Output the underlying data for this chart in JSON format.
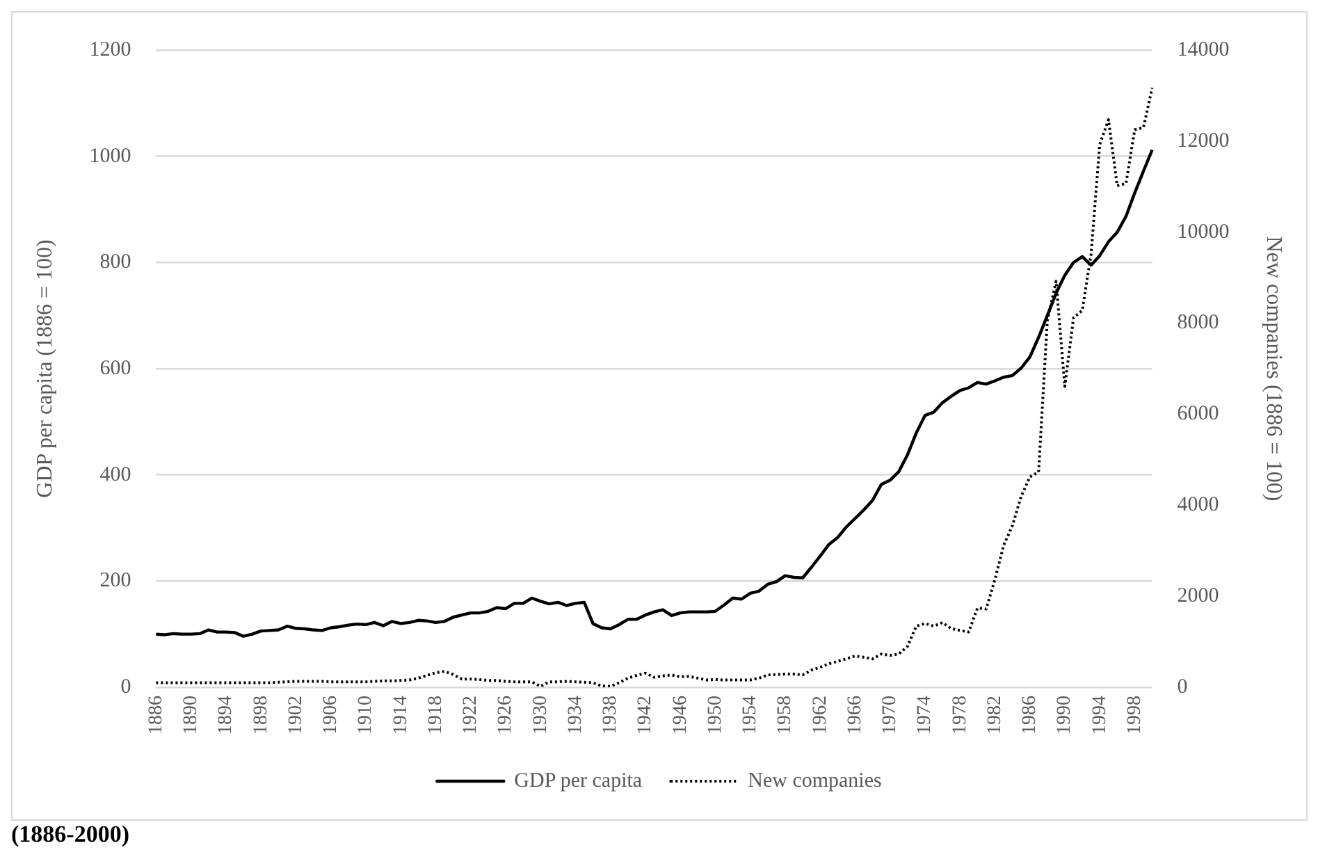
{
  "chart_data": {
    "type": "line",
    "categories": [
      "1886",
      null,
      null,
      null,
      "1890",
      null,
      null,
      null,
      "1894",
      null,
      null,
      null,
      "1898",
      null,
      null,
      null,
      "1902",
      null,
      null,
      null,
      "1906",
      null,
      null,
      null,
      "1910",
      null,
      null,
      null,
      "1914",
      null,
      null,
      null,
      "1918",
      null,
      null,
      null,
      "1922",
      null,
      null,
      null,
      "1926",
      null,
      null,
      null,
      "1930",
      null,
      null,
      null,
      "1934",
      null,
      null,
      null,
      "1938",
      null,
      null,
      null,
      "1942",
      null,
      null,
      null,
      "1946",
      null,
      null,
      null,
      "1950",
      null,
      null,
      null,
      "1954",
      null,
      null,
      null,
      "1958",
      null,
      null,
      null,
      "1962",
      null,
      null,
      null,
      "1966",
      null,
      null,
      null,
      "1970",
      null,
      null,
      null,
      "1974",
      null,
      null,
      null,
      "1978",
      null,
      null,
      null,
      "1982",
      null,
      null,
      null,
      "1986",
      null,
      null,
      null,
      "1990",
      null,
      null,
      null,
      "1994",
      null,
      null,
      null,
      "1998",
      null,
      null
    ],
    "series": [
      {
        "name": "GDP per capita",
        "color": "#000000",
        "line_style": "solid",
        "values": [
          100,
          99,
          101,
          100,
          100,
          101,
          108,
          104,
          104,
          103,
          96,
          100,
          106,
          107,
          108,
          115,
          111,
          110,
          108,
          107,
          112,
          114,
          117,
          119,
          118,
          122,
          116,
          124,
          120,
          122,
          126,
          125,
          122,
          124,
          132,
          136,
          140,
          140,
          143,
          150,
          148,
          158,
          158,
          168,
          162,
          157,
          160,
          154,
          158,
          160,
          120,
          112,
          110,
          118,
          128,
          128,
          136,
          142,
          146,
          135,
          140,
          142,
          142,
          142,
          143,
          155,
          168,
          166,
          177,
          181,
          194,
          199,
          210,
          207,
          206,
          226,
          247,
          269,
          282,
          302,
          318,
          334,
          352,
          382,
          390,
          406,
          438,
          479,
          512,
          518,
          536,
          548,
          559,
          564,
          574,
          571,
          577,
          584,
          587,
          601,
          622,
          659,
          700,
          742,
          776,
          800,
          811,
          795,
          813,
          839,
          857,
          887,
          931,
          972,
          1012
        ]
      },
      {
        "name": "New companies",
        "color": "#000000",
        "line_style": "dotted",
        "axis": "y2",
        "values": [
          100,
          100,
          100,
          100,
          100,
          100,
          100,
          100,
          100,
          100,
          100,
          100,
          100,
          100,
          110,
          120,
          130,
          130,
          130,
          130,
          120,
          120,
          120,
          120,
          120,
          130,
          140,
          140,
          150,
          160,
          200,
          260,
          320,
          350,
          280,
          180,
          180,
          170,
          150,
          150,
          130,
          120,
          120,
          120,
          20,
          120,
          120,
          130,
          120,
          110,
          100,
          30,
          20,
          100,
          200,
          260,
          310,
          220,
          250,
          270,
          230,
          240,
          200,
          160,
          170,
          160,
          160,
          160,
          160,
          200,
          270,
          280,
          290,
          290,
          270,
          376,
          440,
          516,
          570,
          624,
          688,
          660,
          624,
          731,
          700,
          731,
          900,
          1344,
          1400,
          1344,
          1420,
          1290,
          1250,
          1215,
          1740,
          1720,
          2365,
          3118,
          3550,
          4190,
          4620,
          4730,
          8060,
          8920,
          6610,
          8120,
          8280,
          9510,
          11930,
          12470,
          11020,
          11070,
          12250,
          12300,
          13170
        ]
      }
    ],
    "ylabel": "GDP per capita (1886 = 100)",
    "y2label": "New companies (1886 = 100)",
    "ylim": [
      0,
      1200
    ],
    "yticks": [
      0,
      200,
      400,
      600,
      800,
      1000,
      1200
    ],
    "y2lim": [
      0,
      14000
    ],
    "y2ticks": [
      0,
      2000,
      4000,
      6000,
      8000,
      10000,
      12000,
      14000
    ],
    "grid": "y",
    "legend": "bottom",
    "marker": "none",
    "annotations": [
      "(1886-2000)"
    ]
  }
}
